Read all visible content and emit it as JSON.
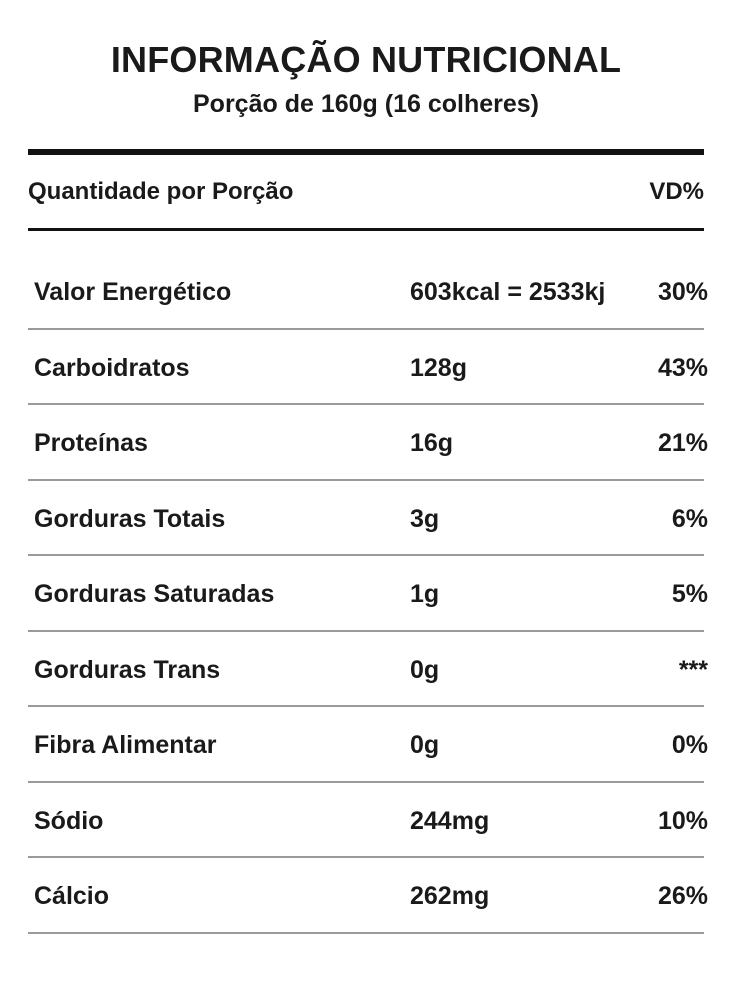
{
  "header": {
    "title": "INFORMAÇÃO NUTRICIONAL",
    "serving": "Porção de 160g (16 colheres)"
  },
  "columns": {
    "quantity_label": "Quantidade por Porção",
    "dv_label": "VD%"
  },
  "rows": [
    {
      "name": "Valor Energético",
      "amount": "603kcal = 2533kj",
      "dv": "30%"
    },
    {
      "name": "Carboidratos",
      "amount": "128g",
      "dv": "43%"
    },
    {
      "name": "Proteínas",
      "amount": "16g",
      "dv": "21%"
    },
    {
      "name": "Gorduras Totais",
      "amount": "3g",
      "dv": "6%"
    },
    {
      "name": "Gorduras Saturadas",
      "amount": "1g",
      "dv": "5%"
    },
    {
      "name": "Gorduras Trans",
      "amount": "0g",
      "dv": "***"
    },
    {
      "name": "Fibra Alimentar",
      "amount": "0g",
      "dv": "0%"
    },
    {
      "name": "Sódio",
      "amount": "244mg",
      "dv": "10%"
    },
    {
      "name": "Cálcio",
      "amount": "262mg",
      "dv": "26%"
    }
  ]
}
